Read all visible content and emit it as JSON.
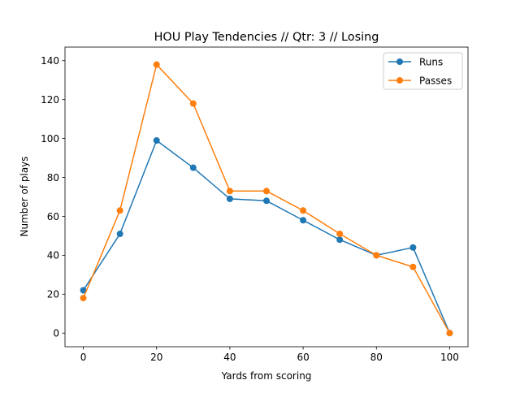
{
  "chart_data": {
    "type": "line",
    "title": "HOU Play Tendencies // Qtr: 3 // Losing",
    "xlabel": "Yards from scoring",
    "ylabel": "Number of plays",
    "xlim": [
      -5,
      105
    ],
    "ylim": [
      -7,
      147
    ],
    "xticks": [
      0,
      20,
      40,
      60,
      80,
      100
    ],
    "yticks": [
      0,
      20,
      40,
      60,
      80,
      100,
      120,
      140
    ],
    "grid": false,
    "legend_position": "top-right",
    "x": [
      0,
      10,
      20,
      30,
      40,
      50,
      60,
      70,
      80,
      90,
      100
    ],
    "series": [
      {
        "name": "Runs",
        "color": "#1f77b4",
        "marker": "circle",
        "values": [
          22,
          51,
          99,
          85,
          69,
          68,
          58,
          48,
          40,
          44,
          0
        ]
      },
      {
        "name": "Passes",
        "color": "#ff7f0e",
        "marker": "circle",
        "values": [
          18,
          63,
          138,
          118,
          73,
          73,
          63,
          51,
          40,
          34,
          0
        ]
      }
    ]
  }
}
